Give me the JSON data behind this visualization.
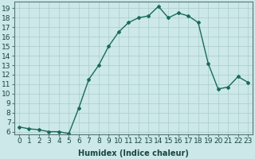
{
  "title": "",
  "xlabel": "Humidex (Indice chaleur)",
  "ylabel": "",
  "x": [
    0,
    1,
    2,
    3,
    4,
    5,
    6,
    7,
    8,
    9,
    10,
    11,
    12,
    13,
    14,
    15,
    16,
    17,
    18,
    19,
    20,
    21,
    22,
    23
  ],
  "y": [
    6.5,
    6.3,
    6.2,
    6.0,
    6.0,
    5.8,
    8.5,
    11.5,
    13.0,
    15.0,
    16.5,
    17.5,
    18.0,
    18.2,
    19.2,
    18.0,
    18.5,
    18.2,
    17.5,
    13.2,
    10.5,
    10.7,
    11.8,
    11.2
  ],
  "ylim": [
    5.7,
    19.7
  ],
  "xlim": [
    -0.5,
    23.5
  ],
  "yticks": [
    6,
    7,
    8,
    9,
    10,
    11,
    12,
    13,
    14,
    15,
    16,
    17,
    18,
    19
  ],
  "xticks": [
    0,
    1,
    2,
    3,
    4,
    5,
    6,
    7,
    8,
    9,
    10,
    11,
    12,
    13,
    14,
    15,
    16,
    17,
    18,
    19,
    20,
    21,
    22,
    23
  ],
  "line_color": "#1a6b5a",
  "marker": "D",
  "marker_size": 2.0,
  "line_width": 1.0,
  "bg_color": "#cce8e8",
  "grid_color": "#aacccc",
  "label_fontsize": 7,
  "tick_fontsize": 6.5
}
